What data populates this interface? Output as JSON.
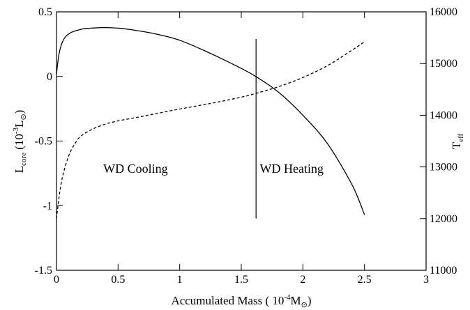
{
  "chart_data": {
    "type": "line",
    "title": "",
    "xlabel": {
      "main": "Accumulated Mass ( 10",
      "sup": "-4",
      "tail": "M",
      "sub": "⊙",
      "close": ")"
    },
    "ylabel_left": {
      "main": "L",
      "sub": "core",
      "mid": " (10",
      "sup": "-3",
      "tail": "L",
      "sub2": "⊙",
      "close": ")"
    },
    "ylabel_right": {
      "main": "T",
      "sub": "eff"
    },
    "xlim": [
      0,
      3
    ],
    "ylim_left": [
      -1.5,
      0.5
    ],
    "ylim_right": [
      11000,
      16000
    ],
    "x_ticks": [
      0,
      0.5,
      1,
      1.5,
      2,
      2.5,
      3
    ],
    "x_tick_labels": [
      "0",
      "0.5",
      "1",
      "1.5",
      "2",
      "2.5",
      "3"
    ],
    "y_left_ticks": [
      -1.5,
      -1,
      -0.5,
      0,
      0.5
    ],
    "y_left_tick_labels": [
      "-1.5",
      "-1",
      "-0.5",
      "0",
      "0.5"
    ],
    "y_right_ticks": [
      11000,
      12000,
      13000,
      14000,
      15000,
      16000
    ],
    "y_right_tick_labels": [
      "11000",
      "12000",
      "13000",
      "14000",
      "15000",
      "16000"
    ],
    "grid": false,
    "series": [
      {
        "axis": "left",
        "style": "solid",
        "x": [
          0,
          0.02,
          0.05,
          0.1,
          0.2,
          0.3,
          0.4,
          0.5,
          0.6,
          0.8,
          1.0,
          1.2,
          1.4,
          1.6,
          1.8,
          2.0,
          2.2,
          2.4,
          2.5
        ],
        "y": [
          0.02,
          0.17,
          0.27,
          0.33,
          0.365,
          0.375,
          0.378,
          0.374,
          0.363,
          0.33,
          0.28,
          0.2,
          0.11,
          0.01,
          -0.12,
          -0.3,
          -0.52,
          -0.84,
          -1.07
        ]
      },
      {
        "axis": "right",
        "style": "dashed",
        "x": [
          0,
          0.02,
          0.05,
          0.1,
          0.15,
          0.2,
          0.3,
          0.4,
          0.5,
          0.7,
          1.0,
          1.3,
          1.5,
          1.6,
          1.8,
          2.0,
          2.2,
          2.4,
          2.5
        ],
        "y": [
          12000,
          12400,
          12820,
          13220,
          13450,
          13600,
          13740,
          13830,
          13890,
          13980,
          14120,
          14250,
          14350,
          14410,
          14550,
          14730,
          14960,
          15260,
          15420
        ]
      }
    ],
    "vertical_line": {
      "x": 1.62,
      "y_top": 0.29,
      "y_bottom": -1.1
    },
    "annotations": [
      {
        "text": "WD Cooling",
        "x": 0.38,
        "y": -0.745
      },
      {
        "text": "WD Heating",
        "x": 1.65,
        "y": -0.745
      }
    ]
  }
}
